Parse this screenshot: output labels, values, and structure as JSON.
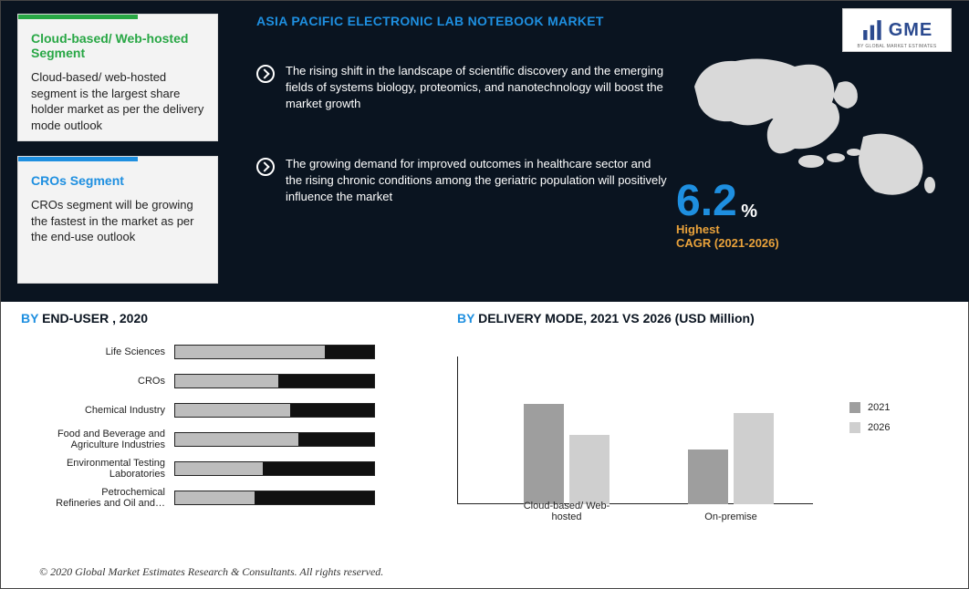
{
  "header": {
    "title": "ASIA PACIFIC ELECTRONIC LAB NOTEBOOK MARKET",
    "title_color": "#1e8fe0",
    "logo_text": "GME",
    "logo_sub": "BY GLOBAL MARKET ESTIMATES"
  },
  "cards": [
    {
      "bar_color": "#28a745",
      "title_color": "#28a745",
      "title": "Cloud-based/ Web-hosted Segment",
      "body": "Cloud-based/ web-hosted segment is the largest share holder market as per the delivery mode outlook"
    },
    {
      "bar_color": "#1e8fe0",
      "title_color": "#1e8fe0",
      "title": "CROs Segment",
      "body": "CROs segment will be growing the fastest in the market as per the end-use outlook"
    }
  ],
  "bullets": [
    "The rising shift in the landscape of scientific discovery and the emerging fields of systems biology, proteomics, and nanotechnology will boost the market growth",
    "The growing demand for improved outcomes in healthcare sector and the rising chronic conditions among the geriatric population will positively influence the market"
  ],
  "cagr": {
    "value": "6.2",
    "pct": "%",
    "highest": "Highest",
    "label": "CAGR (2021-2026)",
    "value_color": "#1e8fe0",
    "label_color": "#e9a23b"
  },
  "sections": {
    "end_user": {
      "by": "BY",
      "rest": " END-USER , 2020"
    },
    "delivery": {
      "by": "BY",
      "rest": " DELIVERY MODE,  2021 VS 2026 (USD Million)"
    }
  },
  "hbar_chart": {
    "type": "bar-horizontal",
    "max": 100,
    "bar_bg": "#111111",
    "fill_color": "#bdbdbd",
    "border_color": "#222222",
    "rows": [
      {
        "label": "Life Sciences",
        "value": 75
      },
      {
        "label": "CROs",
        "value": 52
      },
      {
        "label": "Chemical Industry",
        "value": 58
      },
      {
        "label": "Food and Beverage and\nAgriculture Industries",
        "value": 62
      },
      {
        "label": "Environmental Testing\nLaboratories",
        "value": 44
      },
      {
        "label": "Petrochemical\nRefineries and Oil and…",
        "value": 40
      }
    ]
  },
  "vbar_chart": {
    "type": "bar-grouped",
    "colors": {
      "a": "#9e9e9e",
      "b": "#cfcfcf"
    },
    "axis_color": "#222222",
    "ymax": 140,
    "groups": [
      {
        "label": "Cloud-based/ Web-\nhosted",
        "a": 110,
        "b": 76
      },
      {
        "label": "On-premise",
        "a": 60,
        "b": 100
      }
    ],
    "legend": [
      {
        "label": "2021",
        "color": "#9e9e9e"
      },
      {
        "label": "2026",
        "color": "#cfcfcf"
      }
    ]
  },
  "footer": "© 2020 Global Market Estimates Research & Consultants. All rights reserved."
}
